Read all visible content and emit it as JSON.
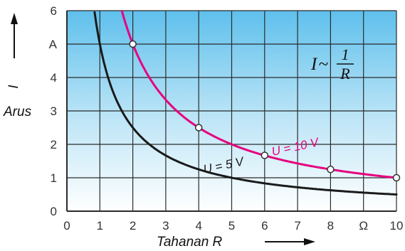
{
  "chart_data": {
    "type": "line",
    "title": "",
    "xlabel": "Tahanan R",
    "ylabel_symbol": "I",
    "ylabel": "Arus",
    "xlim": [
      0,
      10
    ],
    "ylim": [
      0,
      6
    ],
    "x_ticks": [
      "0",
      "1",
      "2",
      "3",
      "4",
      "5",
      "6",
      "7",
      "8",
      "Ω",
      "10"
    ],
    "y_ticks": [
      "0",
      "1",
      "2",
      "3",
      "4",
      "A",
      "6"
    ],
    "grid": true,
    "background": "gradient light-blue",
    "annotation": {
      "lhs": "I",
      "op": "~",
      "numerator": "1",
      "denominator": "R"
    },
    "series": [
      {
        "name": "U = 10 V",
        "color": "#e6007e",
        "function": "10/x",
        "x_range": [
          1.67,
          10
        ],
        "marked_points": [
          {
            "x": 2,
            "y": 5
          },
          {
            "x": 4,
            "y": 2.5
          },
          {
            "x": 6,
            "y": 1.67
          },
          {
            "x": 8,
            "y": 1.25
          },
          {
            "x": 10,
            "y": 1
          }
        ]
      },
      {
        "name": "U = 5 V",
        "color": "#1a1a1a",
        "function": "5/x",
        "x_range": [
          0.84,
          10
        ]
      }
    ]
  }
}
